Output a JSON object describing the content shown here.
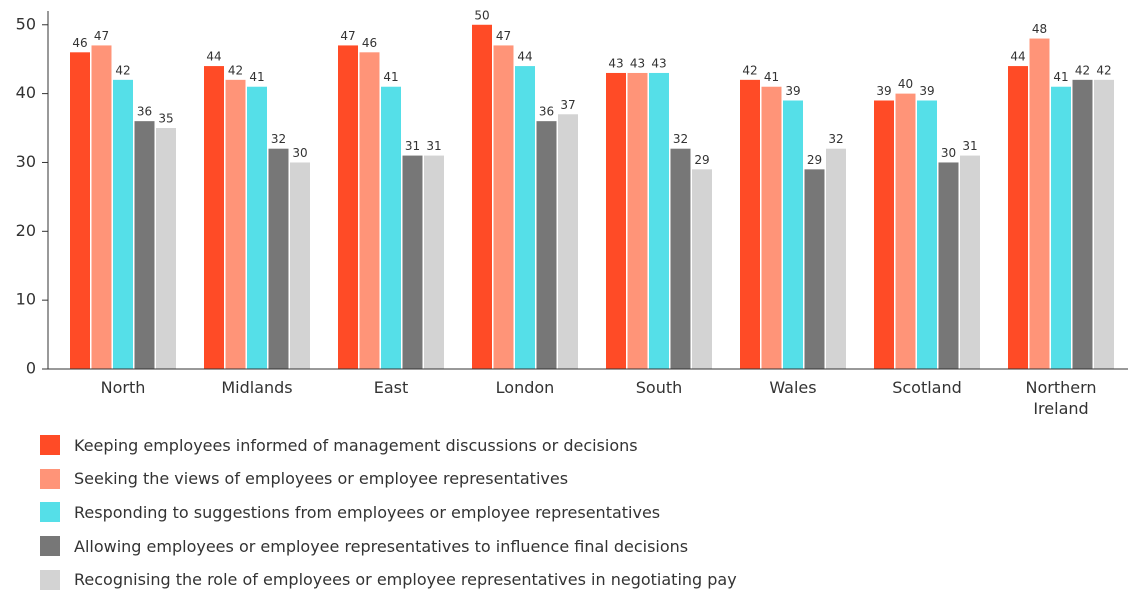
{
  "chart_data": {
    "type": "bar",
    "categories": [
      "North",
      "Midlands",
      "East",
      "London",
      "South",
      "Wales",
      "Scotland",
      "Northern Ireland"
    ],
    "series": [
      {
        "name": "Keeping employees informed of management discussions or decisions",
        "color": "#ff4b26",
        "values": [
          46,
          44,
          47,
          50,
          43,
          42,
          39,
          44
        ]
      },
      {
        "name": "Seeking the views of employees or employee representatives",
        "color": "#ff9478",
        "values": [
          47,
          42,
          46,
          47,
          43,
          41,
          40,
          48
        ]
      },
      {
        "name": "Responding to suggestions from employees or employee representatives",
        "color": "#55dfe8",
        "values": [
          42,
          41,
          41,
          44,
          43,
          39,
          39,
          41
        ]
      },
      {
        "name": "Allowing employees or employee representatives to influence final decisions",
        "color": "#777777",
        "values": [
          36,
          32,
          31,
          36,
          32,
          29,
          30,
          42
        ]
      },
      {
        "name": "Recognising the role of employees or employee representatives in negotiating pay",
        "color": "#d3d3d3",
        "values": [
          35,
          30,
          31,
          37,
          29,
          32,
          31,
          42
        ]
      }
    ],
    "ylim": [
      0,
      52
    ],
    "yticks": [
      0,
      10,
      20,
      30,
      40,
      50
    ],
    "grid": false,
    "legend": "bottom"
  }
}
